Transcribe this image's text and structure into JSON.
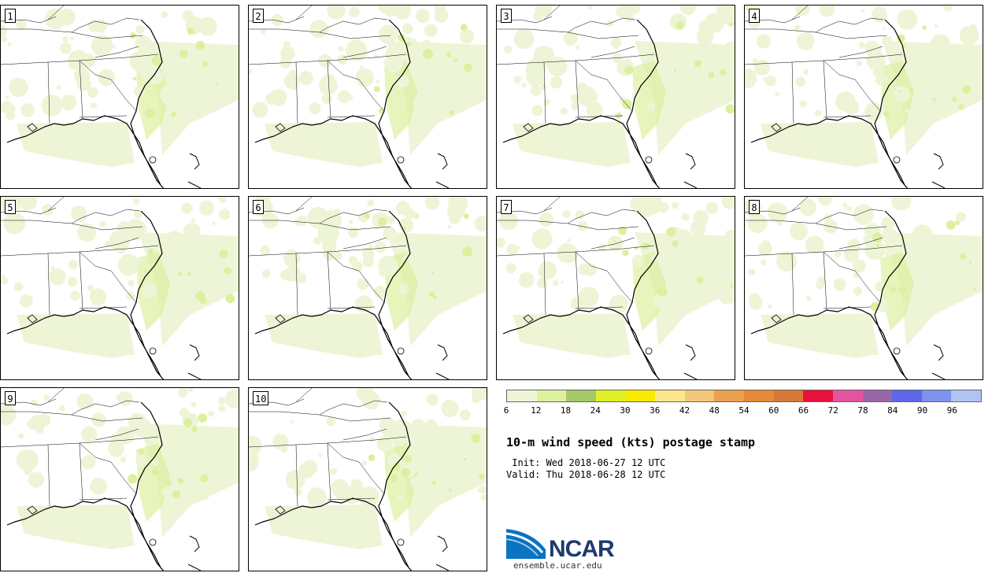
{
  "panels": [
    "1",
    "2",
    "3",
    "4",
    "5",
    "6",
    "7",
    "8",
    "9",
    "10"
  ],
  "colorbar": {
    "ticks": [
      "6",
      "12",
      "18",
      "24",
      "30",
      "36",
      "42",
      "48",
      "54",
      "60",
      "66",
      "72",
      "78",
      "84",
      "90",
      "96"
    ],
    "colors": [
      "#eef5d7",
      "#ddf0a0",
      "#a6c968",
      "#dff028",
      "#f8ea00",
      "#fbe68a",
      "#f2c77a",
      "#e9a050",
      "#e48a38",
      "#d67938",
      "#e8103c",
      "#e354a0",
      "#9b66a8",
      "#5e67ea",
      "#7d92ec",
      "#b0c4f2"
    ],
    "unit_range": [
      6,
      102
    ]
  },
  "title": "10-m wind speed (kts) postage stamp",
  "init": " Init: Wed 2018-06-27 12 UTC",
  "valid": "Valid: Thu 2018-06-28 12 UTC",
  "logo": {
    "name": "NCAR",
    "url": "ensemble.ucar.edu"
  },
  "map_colors": {
    "land": "#ffffff",
    "light_wind": "#eef5d7",
    "moderate_wind": "#ddf0a0"
  }
}
